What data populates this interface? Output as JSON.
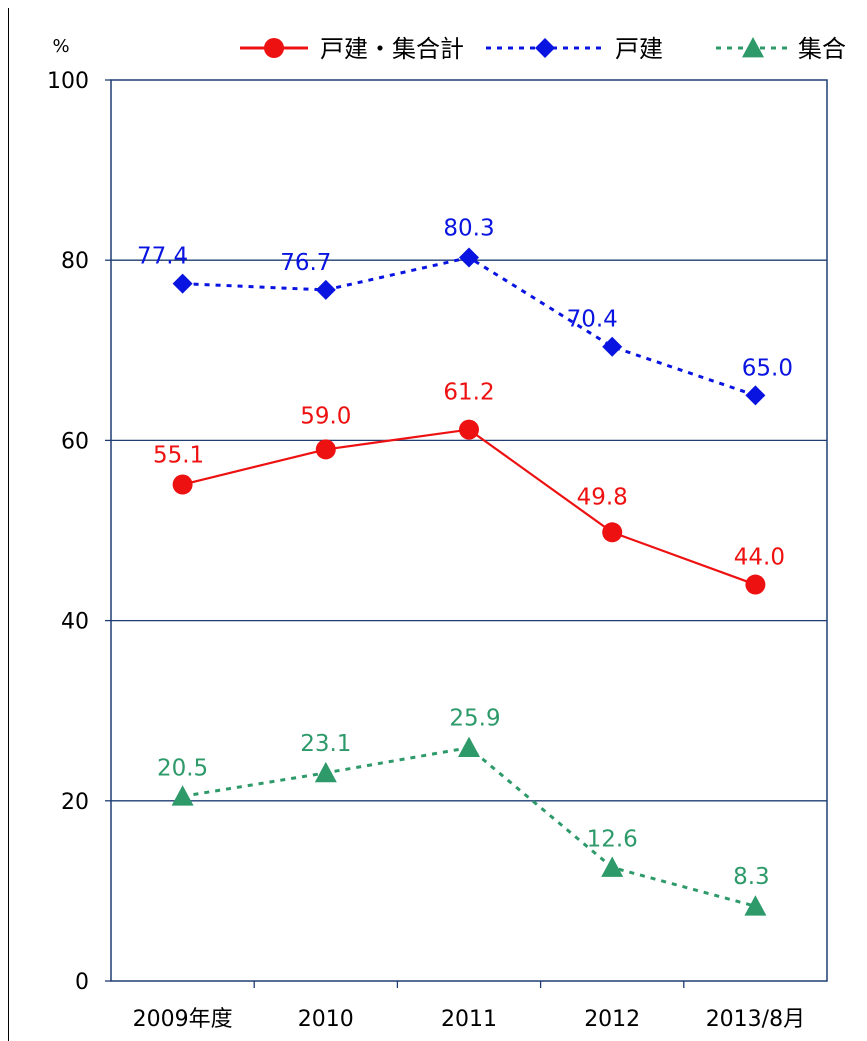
{
  "chart_data": {
    "type": "line",
    "title": "",
    "xlabel": "",
    "ylabel": "%",
    "ylim": [
      0,
      100
    ],
    "yticks": [
      0,
      20,
      40,
      60,
      80,
      100
    ],
    "grid": true,
    "legend_position": "top-right",
    "categories": [
      "2009年度",
      "2010",
      "2011",
      "2012",
      "2013/8月"
    ],
    "series": [
      {
        "name": "戸建・集合計",
        "values": [
          55.1,
          59.0,
          61.2,
          49.8,
          44.0
        ],
        "labels": [
          "55.1",
          "59.0",
          "61.2",
          "49.8",
          "44.0"
        ],
        "color": "#ee1111",
        "marker": "circle",
        "line_style": "solid"
      },
      {
        "name": "戸建",
        "values": [
          77.4,
          76.7,
          80.3,
          70.4,
          65.0
        ],
        "labels": [
          "77.4",
          "76.7",
          "80.3",
          "70.4",
          "65.0"
        ],
        "color": "#0a14e0",
        "marker": "diamond",
        "line_style": "dotted"
      },
      {
        "name": "集合",
        "values": [
          20.5,
          23.1,
          25.9,
          12.6,
          8.3
        ],
        "labels": [
          "20.5",
          "23.1",
          "25.9",
          "12.6",
          "8.3"
        ],
        "color": "#2e9a6a",
        "marker": "triangle",
        "line_style": "dotted"
      }
    ]
  }
}
